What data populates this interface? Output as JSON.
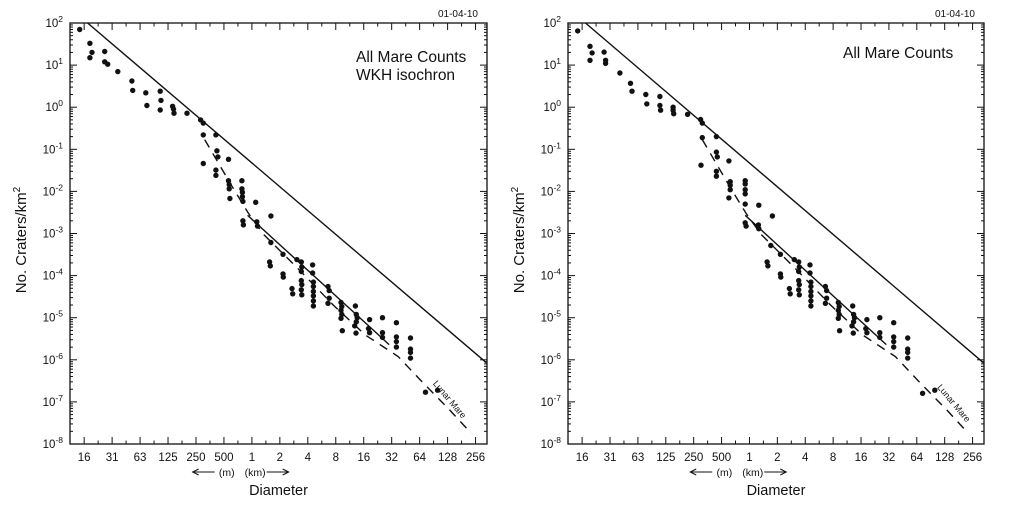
{
  "figure": {
    "background": "#ffffff",
    "ink_color": "#111111"
  },
  "chart_data": [
    {
      "type": "scatter",
      "title_lines": [
        "All Mare Counts",
        "WKH isochron"
      ],
      "date_label": "01-04-10",
      "xlabel": "Diameter",
      "x_unit_annotation": {
        "meters_label": "(m)",
        "kilometers_label": "(km)"
      },
      "ylabel_base": "No. Craters/km",
      "ylabel_exponent": "2",
      "x_scale": "log2",
      "y_scale": "log10",
      "xlim_km": [
        0.011,
        340
      ],
      "ylim": [
        1e-08,
        100
      ],
      "grid": false,
      "x_tick_values_km": [
        0.015625,
        0.03125,
        0.0625,
        0.125,
        0.25,
        0.5,
        1,
        2,
        4,
        8,
        16,
        32,
        64,
        128,
        256
      ],
      "x_tick_labels": [
        "16",
        "31",
        "63",
        "125",
        "250",
        "500",
        "1",
        "2",
        "4",
        "8",
        "16",
        "32",
        "64",
        "128",
        "256"
      ],
      "y_tick_base": "10",
      "y_tick_exponents": [
        "2",
        "1",
        "0",
        "-1",
        "-2",
        "-3",
        "-4",
        "-5",
        "-6",
        "-7",
        "-8"
      ],
      "equilibrium_label": "Lunar Mare",
      "lines": {
        "isochron": [
          [
            0.017,
            100
          ],
          [
            336,
            8.5e-07
          ]
        ],
        "mare_fit": [
          [
            0.9,
            0.0027
          ],
          [
            30,
            2.3e-06
          ]
        ],
        "equilibrium_dashed": [
          [
            0.31,
            0.17
          ],
          [
            0.6,
            0.014
          ],
          [
            0.91,
            0.0031
          ],
          [
            1.33,
            0.00096
          ],
          [
            3.25,
            0.000136
          ],
          [
            7.5,
            2e-05
          ],
          [
            16.6,
            3.9e-06
          ],
          [
            37.5,
            1.2e-06
          ],
          [
            70,
            2.8e-07
          ],
          [
            130,
            7e-08
          ],
          [
            230,
            1.8e-08
          ]
        ]
      },
      "points_diameter_km_density": [
        [
          0.014,
          70
        ],
        [
          0.018,
          33
        ],
        [
          0.019,
          20
        ],
        [
          0.018,
          15
        ],
        [
          0.026,
          21
        ],
        [
          0.026,
          12
        ],
        [
          0.028,
          10.5
        ],
        [
          0.036,
          7
        ],
        [
          0.051,
          4.2
        ],
        [
          0.052,
          2.5
        ],
        [
          0.072,
          2.2
        ],
        [
          0.074,
          1.1
        ],
        [
          0.103,
          2.4
        ],
        [
          0.105,
          1.45
        ],
        [
          0.103,
          0.86
        ],
        [
          0.14,
          1.05
        ],
        [
          0.143,
          0.9
        ],
        [
          0.145,
          0.72
        ],
        [
          0.2,
          0.72
        ],
        [
          0.28,
          0.5
        ],
        [
          0.3,
          0.42
        ],
        [
          0.3,
          0.22
        ],
        [
          0.3,
          0.046
        ],
        [
          0.41,
          0.22
        ],
        [
          0.42,
          0.092
        ],
        [
          0.43,
          0.066
        ],
        [
          0.41,
          0.032
        ],
        [
          0.41,
          0.024
        ],
        [
          0.56,
          0.058
        ],
        [
          0.56,
          0.018
        ],
        [
          0.57,
          0.0145
        ],
        [
          0.57,
          0.0115
        ],
        [
          0.58,
          0.0068
        ],
        [
          0.78,
          0.018
        ],
        [
          0.78,
          0.0115
        ],
        [
          0.79,
          0.0095
        ],
        [
          0.79,
          0.0075
        ],
        [
          0.8,
          0.0058
        ],
        [
          0.8,
          0.002
        ],
        [
          0.81,
          0.0016
        ],
        [
          1.1,
          0.0055
        ],
        [
          1.13,
          0.0019
        ],
        [
          1.15,
          0.0015
        ],
        [
          1.55,
          0.00021
        ],
        [
          1.58,
          0.00017
        ],
        [
          1.6,
          0.0026
        ],
        [
          1.6,
          0.00061
        ],
        [
          2.16,
          0.00032
        ],
        [
          2.16,
          0.00011
        ],
        [
          2.18,
          9.2e-05
        ],
        [
          2.7,
          4.9e-05
        ],
        [
          2.75,
          3.7e-05
        ],
        [
          3.05,
          0.00024
        ],
        [
          3.4,
          0.00021
        ],
        [
          3.45,
          0.00016
        ],
        [
          3.4,
          0.000125
        ],
        [
          3.4,
          7.6e-05
        ],
        [
          3.45,
          6.1e-05
        ],
        [
          3.4,
          4.6e-05
        ],
        [
          3.45,
          3.5e-05
        ],
        [
          4.5,
          0.00018
        ],
        [
          4.5,
          0.000115
        ],
        [
          4.6,
          7e-05
        ],
        [
          4.6,
          5.5e-05
        ],
        [
          4.6,
          4.2e-05
        ],
        [
          4.6,
          3.3e-05
        ],
        [
          4.6,
          2.5e-05
        ],
        [
          4.6,
          1.9e-05
        ],
        [
          6.6,
          5.5e-05
        ],
        [
          6.8,
          4.4e-05
        ],
        [
          6.8,
          2.9e-05
        ],
        [
          6.6,
          2.2e-05
        ],
        [
          9.1,
          2.3e-05
        ],
        [
          9.3,
          1.85e-05
        ],
        [
          9.1,
          1.5e-05
        ],
        [
          9.3,
          1.2e-05
        ],
        [
          9.1,
          9.7e-06
        ],
        [
          9.4,
          4.9e-06
        ],
        [
          13,
          1.9e-05
        ],
        [
          13.3,
          1.2e-05
        ],
        [
          13.6,
          1e-05
        ],
        [
          13.3,
          8e-06
        ],
        [
          12.8,
          6.4e-06
        ],
        [
          13.2,
          4.3e-06
        ],
        [
          18.5,
          9e-06
        ],
        [
          18,
          5.5e-06
        ],
        [
          18.5,
          4.4e-06
        ],
        [
          25.5,
          1e-05
        ],
        [
          25.5,
          4.4e-06
        ],
        [
          25.5,
          3.4e-06
        ],
        [
          36,
          7.6e-06
        ],
        [
          36,
          3.5e-06
        ],
        [
          36,
          2.7e-06
        ],
        [
          36,
          2e-06
        ],
        [
          51,
          3.3e-06
        ],
        [
          51,
          1.8e-06
        ],
        [
          51,
          1.5e-06
        ],
        [
          51,
          1.1e-06
        ],
        [
          74,
          1.7e-07
        ],
        [
          100,
          1.9e-07
        ]
      ]
    },
    {
      "type": "scatter",
      "title_lines": [
        "All Mare Counts"
      ],
      "date_label": "01-04-10",
      "xlabel": "Diameter",
      "x_unit_annotation": {
        "meters_label": "(m)",
        "kilometers_label": "(km)"
      },
      "ylabel_base": "No. Craters/km",
      "ylabel_exponent": "2",
      "x_scale": "log2",
      "y_scale": "log10",
      "xlim_km": [
        0.011,
        340
      ],
      "ylim": [
        1e-08,
        100
      ],
      "grid": false,
      "x_tick_values_km": [
        0.015625,
        0.03125,
        0.0625,
        0.125,
        0.25,
        0.5,
        1,
        2,
        4,
        8,
        16,
        32,
        64,
        128,
        256
      ],
      "x_tick_labels": [
        "16",
        "31",
        "63",
        "125",
        "250",
        "500",
        "1",
        "2",
        "4",
        "8",
        "16",
        "32",
        "64",
        "128",
        "256"
      ],
      "y_tick_base": "10",
      "y_tick_exponents": [
        "2",
        "1",
        "0",
        "-1",
        "-2",
        "-3",
        "-4",
        "-5",
        "-6",
        "-7",
        "-8"
      ],
      "equilibrium_label": "Lunar Mare",
      "lines": {
        "isochron": [
          [
            0.017,
            100
          ],
          [
            336,
            8.5e-07
          ]
        ],
        "mare_fit": [
          [
            0.9,
            0.0027
          ],
          [
            30,
            2.3e-06
          ]
        ],
        "equilibrium_dashed": [
          [
            0.31,
            0.17
          ],
          [
            0.6,
            0.014
          ],
          [
            0.91,
            0.0031
          ],
          [
            1.33,
            0.00096
          ],
          [
            3.25,
            0.000136
          ],
          [
            7.5,
            2e-05
          ],
          [
            16.6,
            3.9e-06
          ],
          [
            37.5,
            1.2e-06
          ],
          [
            70,
            2.8e-07
          ],
          [
            130,
            7e-08
          ],
          [
            230,
            1.8e-08
          ]
        ]
      },
      "points_diameter_km_density": [
        [
          0.014,
          65
        ],
        [
          0.019,
          28
        ],
        [
          0.02,
          19.5
        ],
        [
          0.019,
          13
        ],
        [
          0.027,
          20.4
        ],
        [
          0.028,
          13
        ],
        [
          0.028,
          11
        ],
        [
          0.04,
          6.5
        ],
        [
          0.052,
          3.7
        ],
        [
          0.054,
          2.4
        ],
        [
          0.076,
          2.0
        ],
        [
          0.078,
          1.2
        ],
        [
          0.108,
          1.8
        ],
        [
          0.108,
          1.1
        ],
        [
          0.11,
          0.85
        ],
        [
          0.15,
          1.0
        ],
        [
          0.15,
          0.85
        ],
        [
          0.152,
          0.7
        ],
        [
          0.215,
          0.68
        ],
        [
          0.297,
          0.51
        ],
        [
          0.31,
          0.42
        ],
        [
          0.31,
          0.19
        ],
        [
          0.3,
          0.042
        ],
        [
          0.44,
          0.2
        ],
        [
          0.44,
          0.086
        ],
        [
          0.45,
          0.066
        ],
        [
          0.44,
          0.03
        ],
        [
          0.44,
          0.023
        ],
        [
          0.6,
          0.053
        ],
        [
          0.62,
          0.017
        ],
        [
          0.62,
          0.014
        ],
        [
          0.62,
          0.011
        ],
        [
          0.6,
          0.007
        ],
        [
          0.9,
          0.018
        ],
        [
          0.9,
          0.015
        ],
        [
          0.9,
          0.011
        ],
        [
          0.9,
          0.0087
        ],
        [
          0.9,
          0.005
        ],
        [
          0.9,
          0.0018
        ],
        [
          0.92,
          0.0015
        ],
        [
          1.26,
          0.0047
        ],
        [
          1.25,
          0.0016
        ],
        [
          1.26,
          0.0013
        ],
        [
          1.55,
          0.00021
        ],
        [
          1.58,
          0.00017
        ],
        [
          1.77,
          0.0026
        ],
        [
          1.7,
          0.00052
        ],
        [
          2.16,
          0.00032
        ],
        [
          2.16,
          0.00011
        ],
        [
          2.18,
          9.2e-05
        ],
        [
          2.7,
          4.9e-05
        ],
        [
          2.75,
          3.7e-05
        ],
        [
          3.05,
          0.00024
        ],
        [
          3.4,
          0.00021
        ],
        [
          3.45,
          0.00016
        ],
        [
          3.4,
          0.000125
        ],
        [
          3.4,
          7.6e-05
        ],
        [
          3.45,
          6.1e-05
        ],
        [
          3.4,
          4.6e-05
        ],
        [
          3.45,
          3.5e-05
        ],
        [
          4.5,
          0.00018
        ],
        [
          4.5,
          0.000115
        ],
        [
          4.6,
          7e-05
        ],
        [
          4.6,
          5.5e-05
        ],
        [
          4.6,
          4.2e-05
        ],
        [
          4.6,
          3.3e-05
        ],
        [
          4.6,
          2.5e-05
        ],
        [
          4.6,
          1.9e-05
        ],
        [
          6.6,
          5.5e-05
        ],
        [
          6.8,
          4.4e-05
        ],
        [
          6.8,
          2.9e-05
        ],
        [
          6.6,
          2.2e-05
        ],
        [
          9.1,
          2.3e-05
        ],
        [
          9.3,
          1.85e-05
        ],
        [
          9.1,
          1.5e-05
        ],
        [
          9.3,
          1.2e-05
        ],
        [
          9.1,
          9.7e-06
        ],
        [
          9.4,
          4.9e-06
        ],
        [
          13,
          1.9e-05
        ],
        [
          13.3,
          1.2e-05
        ],
        [
          13.6,
          1e-05
        ],
        [
          13.3,
          8e-06
        ],
        [
          12.8,
          6.4e-06
        ],
        [
          13.2,
          4.3e-06
        ],
        [
          18.5,
          9e-06
        ],
        [
          18,
          5.5e-06
        ],
        [
          18.5,
          4.4e-06
        ],
        [
          25.5,
          1e-05
        ],
        [
          25.5,
          4.4e-06
        ],
        [
          25.5,
          3.4e-06
        ],
        [
          36,
          7.6e-06
        ],
        [
          36,
          3.5e-06
        ],
        [
          36,
          2.7e-06
        ],
        [
          36,
          2e-06
        ],
        [
          51,
          3.3e-06
        ],
        [
          51,
          1.8e-06
        ],
        [
          51,
          1.5e-06
        ],
        [
          51,
          1.1e-06
        ],
        [
          74,
          1.6e-07
        ],
        [
          100,
          1.9e-07
        ]
      ]
    }
  ]
}
